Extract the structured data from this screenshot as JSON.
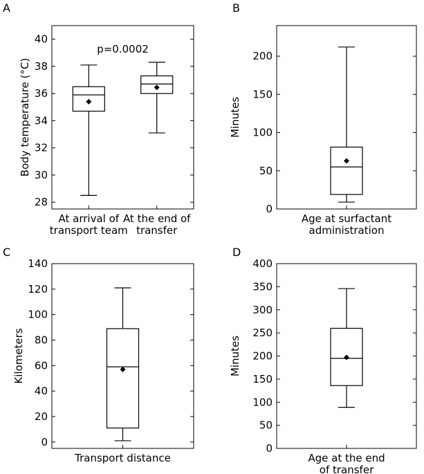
{
  "figure": {
    "panels": [
      "A",
      "B",
      "C",
      "D"
    ]
  },
  "chart_data": [
    {
      "panel": "A",
      "type": "box",
      "ylabel": "Body temperature (°C)",
      "ylim": [
        27.5,
        41
      ],
      "yticks": [
        28,
        30,
        32,
        34,
        36,
        38,
        40
      ],
      "annotation": "p=0.0002",
      "categories": [
        [
          "At arrival of",
          "transport team"
        ],
        [
          "At the end of",
          "transfer"
        ]
      ],
      "boxes": [
        {
          "whisker_low": 28.5,
          "q1": 34.7,
          "median": 35.9,
          "q3": 36.5,
          "whisker_high": 38.1,
          "mean": 35.4
        },
        {
          "whisker_low": 33.1,
          "q1": 36.0,
          "median": 36.7,
          "q3": 37.3,
          "whisker_high": 38.3,
          "mean": 36.45
        }
      ]
    },
    {
      "panel": "B",
      "type": "box",
      "ylabel": "Minutes",
      "ylim": [
        0,
        240
      ],
      "yticks": [
        0,
        50,
        100,
        150,
        200
      ],
      "categories": [
        [
          "Age at surfactant",
          "administration"
        ]
      ],
      "boxes": [
        {
          "whisker_low": 9,
          "q1": 19,
          "median": 55,
          "q3": 81,
          "whisker_high": 212,
          "mean": 63
        }
      ]
    },
    {
      "panel": "C",
      "type": "box",
      "ylabel": "Kilometers",
      "ylim": [
        -5,
        140
      ],
      "yticks": [
        0,
        20,
        40,
        60,
        80,
        100,
        120,
        140
      ],
      "categories": [
        [
          "Transport distance"
        ]
      ],
      "boxes": [
        {
          "whisker_low": 1,
          "q1": 11,
          "median": 59,
          "q3": 89,
          "whisker_high": 121,
          "mean": 57
        }
      ]
    },
    {
      "panel": "D",
      "type": "box",
      "ylabel": "Minutes",
      "ylim": [
        0,
        400
      ],
      "yticks": [
        0,
        50,
        100,
        150,
        200,
        250,
        300,
        350,
        400
      ],
      "categories": [
        [
          "Age at the end",
          "of transfer"
        ]
      ],
      "boxes": [
        {
          "whisker_low": 89,
          "q1": 136,
          "median": 195,
          "q3": 260,
          "whisker_high": 346,
          "mean": 197
        }
      ]
    }
  ]
}
